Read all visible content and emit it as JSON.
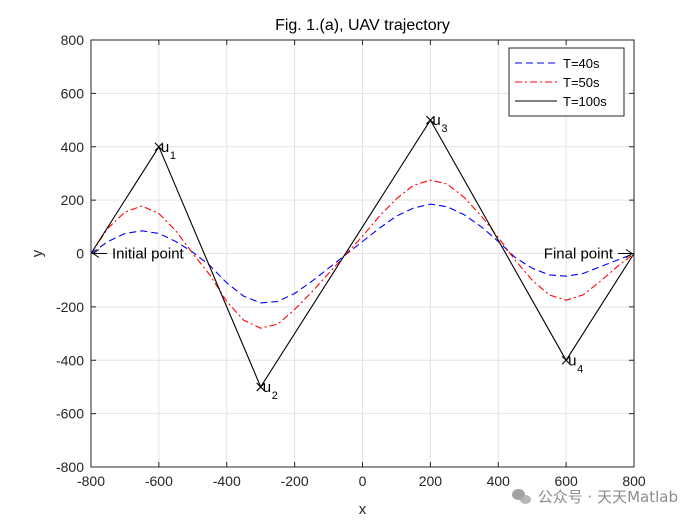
{
  "chart_data": {
    "type": "line",
    "title": "Fig. 1.(a), UAV trajectory",
    "xlabel": "x",
    "ylabel": "y",
    "xlim": [
      -800,
      800
    ],
    "ylim": [
      -800,
      800
    ],
    "xticks": [
      -800,
      -600,
      -400,
      -200,
      0,
      200,
      400,
      600,
      800
    ],
    "yticks": [
      -800,
      -600,
      -400,
      -200,
      0,
      200,
      400,
      600,
      800
    ],
    "grid": true,
    "legend_position": "top-right",
    "series": [
      {
        "name": "T=40s",
        "color": "#0000ff",
        "style": "dashed",
        "x": [
          -800,
          -750,
          -700,
          -650,
          -600,
          -550,
          -500,
          -450,
          -400,
          -350,
          -300,
          -250,
          -200,
          -150,
          -100,
          -50,
          0,
          50,
          100,
          150,
          200,
          250,
          300,
          350,
          400,
          450,
          500,
          550,
          600,
          650,
          700,
          750,
          800
        ],
        "y": [
          0,
          45,
          75,
          85,
          75,
          45,
          5,
          -45,
          -110,
          -160,
          -185,
          -180,
          -150,
          -105,
          -55,
          -5,
          45,
          95,
          140,
          170,
          185,
          175,
          145,
          100,
          45,
          -15,
          -55,
          -80,
          -85,
          -75,
          -50,
          -25,
          0
        ]
      },
      {
        "name": "T=50s",
        "color": "#ff0000",
        "style": "dashdot",
        "x": [
          -800,
          -750,
          -700,
          -650,
          -600,
          -550,
          -500,
          -450,
          -400,
          -350,
          -300,
          -250,
          -200,
          -150,
          -100,
          -50,
          0,
          50,
          100,
          150,
          200,
          250,
          300,
          350,
          400,
          450,
          500,
          550,
          600,
          650,
          700,
          750,
          800
        ],
        "y": [
          0,
          95,
          155,
          178,
          150,
          85,
          0,
          -80,
          -180,
          -250,
          -280,
          -265,
          -210,
          -145,
          -75,
          -5,
          65,
          140,
          205,
          255,
          275,
          260,
          210,
          140,
          60,
          -25,
          -100,
          -155,
          -175,
          -155,
          -105,
          -50,
          0
        ]
      },
      {
        "name": "T=100s",
        "color": "#000000",
        "style": "solid",
        "x": [
          -800,
          -600,
          -300,
          200,
          600,
          800
        ],
        "y": [
          0,
          400,
          -500,
          500,
          -400,
          0
        ]
      }
    ],
    "waypoints": [
      {
        "label": "u",
        "sub": "1",
        "x": -600,
        "y": 400
      },
      {
        "label": "u",
        "sub": "2",
        "x": -300,
        "y": -500
      },
      {
        "label": "u",
        "sub": "3",
        "x": 200,
        "y": 500
      },
      {
        "label": "u",
        "sub": "4",
        "x": 600,
        "y": -400
      }
    ],
    "annotations": [
      {
        "text": "Initial point",
        "x": -800,
        "y": 0
      },
      {
        "text": "Final point",
        "x": 800,
        "y": 0
      }
    ]
  },
  "watermark": {
    "text": "公众号 · 天天Matlab",
    "icon": "wechat-icon"
  }
}
